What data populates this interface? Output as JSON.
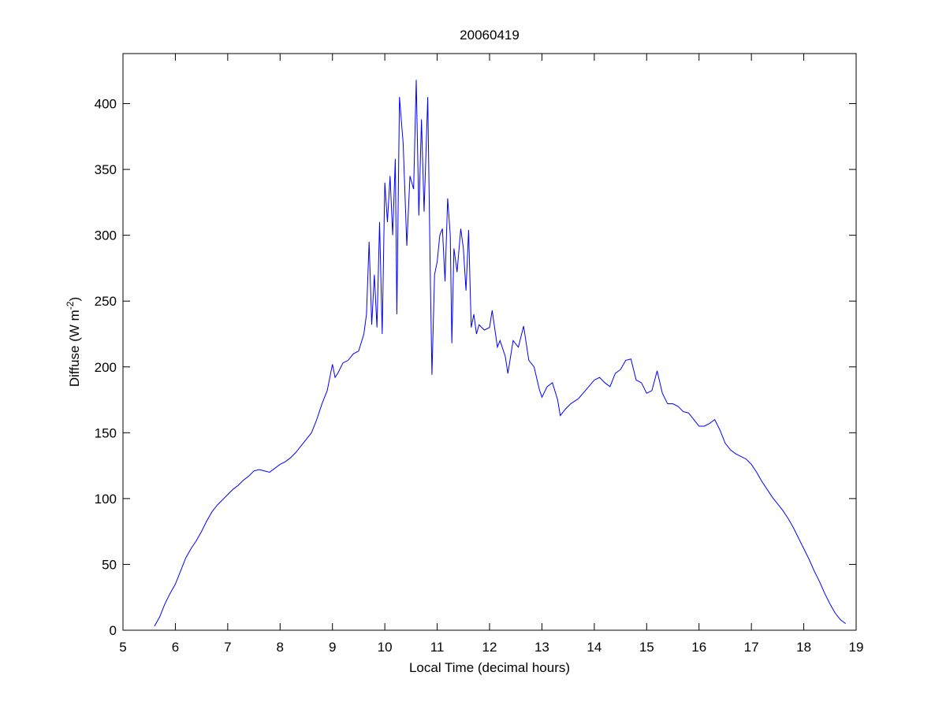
{
  "chart_data": {
    "type": "line",
    "title": "20060419",
    "xlabel": "Local Time (decimal hours)",
    "ylabel": [
      "Diffuse (W m",
      "-2",
      ")"
    ],
    "xlim": [
      5,
      19
    ],
    "xticks": [
      5,
      6,
      7,
      8,
      9,
      10,
      11,
      12,
      13,
      14,
      15,
      16,
      17,
      18,
      19
    ],
    "ylim": [
      0,
      438
    ],
    "yticks": [
      0,
      50,
      100,
      150,
      200,
      250,
      300,
      350,
      400
    ],
    "grid": false,
    "series": [
      {
        "color": "#0000ff",
        "x": [
          5.6,
          5.7,
          5.8,
          5.9,
          6.0,
          6.1,
          6.2,
          6.3,
          6.4,
          6.5,
          6.6,
          6.7,
          6.8,
          6.9,
          7.0,
          7.1,
          7.2,
          7.3,
          7.4,
          7.5,
          7.6,
          7.7,
          7.8,
          7.9,
          8.0,
          8.1,
          8.2,
          8.3,
          8.4,
          8.5,
          8.6,
          8.7,
          8.8,
          8.9,
          9.0,
          9.05,
          9.1,
          9.2,
          9.3,
          9.4,
          9.5,
          9.6,
          9.65,
          9.7,
          9.75,
          9.8,
          9.85,
          9.9,
          9.95,
          10.0,
          10.05,
          10.1,
          10.15,
          10.2,
          10.23,
          10.28,
          10.35,
          10.42,
          10.48,
          10.55,
          10.6,
          10.65,
          10.7,
          10.75,
          10.82,
          10.87,
          10.9,
          10.95,
          11.0,
          11.05,
          11.1,
          11.15,
          11.2,
          11.25,
          11.28,
          11.32,
          11.38,
          11.45,
          11.5,
          11.55,
          11.6,
          11.65,
          11.7,
          11.75,
          11.8,
          11.9,
          12.0,
          12.05,
          12.15,
          12.2,
          12.3,
          12.35,
          12.45,
          12.55,
          12.65,
          12.75,
          12.85,
          12.95,
          13.0,
          13.1,
          13.2,
          13.3,
          13.35,
          13.45,
          13.55,
          13.7,
          13.85,
          14.0,
          14.1,
          14.2,
          14.3,
          14.4,
          14.5,
          14.6,
          14.7,
          14.8,
          14.9,
          15.0,
          15.1,
          15.2,
          15.3,
          15.4,
          15.5,
          15.6,
          15.7,
          15.8,
          15.9,
          16.0,
          16.1,
          16.2,
          16.3,
          16.4,
          16.5,
          16.6,
          16.7,
          16.8,
          16.9,
          17.0,
          17.1,
          17.2,
          17.3,
          17.4,
          17.5,
          17.6,
          17.7,
          17.8,
          17.9,
          18.0,
          18.1,
          18.2,
          18.3,
          18.4,
          18.5,
          18.6,
          18.7,
          18.8
        ],
        "values": [
          3,
          10,
          20,
          28,
          35,
          45,
          55,
          62,
          68,
          75,
          83,
          90,
          95,
          99,
          103,
          107,
          110,
          114,
          117,
          121,
          122,
          121,
          120,
          123,
          126,
          128,
          131,
          135,
          140,
          145,
          150,
          160,
          172,
          182,
          202,
          192,
          195,
          203,
          205,
          210,
          212,
          225,
          240,
          295,
          232,
          270,
          230,
          310,
          225,
          340,
          310,
          345,
          300,
          358,
          240,
          405,
          370,
          292,
          345,
          335,
          418,
          315,
          388,
          318,
          405,
          265,
          194,
          270,
          280,
          300,
          305,
          265,
          328,
          300,
          218,
          290,
          272,
          305,
          290,
          258,
          304,
          230,
          240,
          225,
          232,
          228,
          230,
          243,
          215,
          220,
          208,
          195,
          220,
          215,
          231,
          205,
          200,
          183,
          177,
          185,
          188,
          175,
          163,
          168,
          172,
          176,
          183,
          190,
          192,
          188,
          185,
          195,
          198,
          205,
          206,
          190,
          188,
          180,
          182,
          197,
          180,
          172,
          172,
          170,
          166,
          165,
          160,
          155,
          155,
          157,
          160,
          152,
          142,
          137,
          134,
          132,
          130,
          126,
          120,
          113,
          107,
          101,
          96,
          91,
          85,
          78,
          70,
          62,
          54,
          45,
          37,
          28,
          20,
          13,
          8,
          5
        ]
      }
    ]
  }
}
